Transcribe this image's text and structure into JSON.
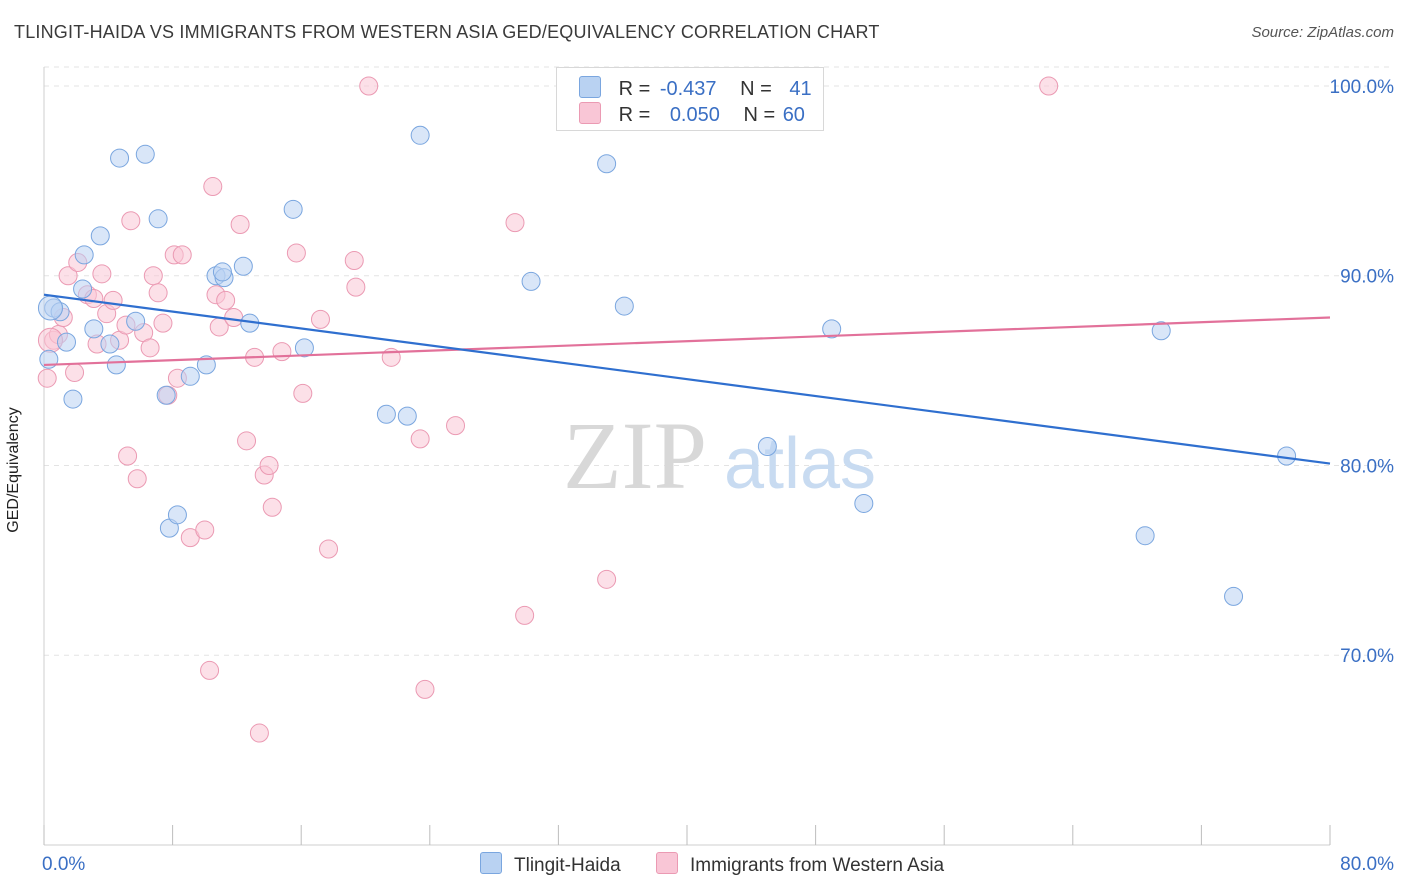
{
  "header": {
    "title": "TLINGIT-HAIDA VS IMMIGRANTS FROM WESTERN ASIA GED/EQUIVALENCY CORRELATION CHART",
    "source": "Source: ZipAtlas.com"
  },
  "watermark": {
    "zip": "ZIP",
    "atlas": "atlas"
  },
  "legend_top": {
    "rows": [
      {
        "r_label": "R =",
        "r_value": "-0.437",
        "n_label": "N =",
        "n_value": "41"
      },
      {
        "r_label": "R =",
        "r_value": "0.050",
        "n_label": "N =",
        "n_value": "60"
      }
    ]
  },
  "colors": {
    "blue_fill": "#b9d2f2",
    "blue_stroke": "#7aa6df",
    "blue_line": "#2f6fcf",
    "pink_fill": "#f9c6d6",
    "pink_stroke": "#eb9ab3",
    "pink_line": "#e2719a",
    "tick_label": "#3a6fc4",
    "grid": "#e3e3e3"
  },
  "chart_data": {
    "type": "scatter",
    "title": "TLINGIT-HAIDA VS IMMIGRANTS FROM WESTERN ASIA GED/EQUIVALENCY CORRELATION CHART",
    "ylabel": "GED/Equivalency",
    "xlabel": "",
    "xlim": [
      0,
      80
    ],
    "ylim": [
      60,
      101
    ],
    "x_tick_labels": [
      "0.0%",
      "80.0%"
    ],
    "y_ticks": [
      70,
      80,
      90,
      100
    ],
    "y_tick_labels": [
      "70.0%",
      "80.0%",
      "90.0%",
      "100.0%"
    ],
    "grid": true,
    "legend": "bottom-center",
    "series": [
      {
        "name": "Tlingit-Haida",
        "color": "#7aa6df",
        "trend": {
          "x": [
            0,
            80
          ],
          "y": [
            89.0,
            80.1
          ]
        },
        "points": [
          [
            0.3,
            85.6
          ],
          [
            0.6,
            88.3
          ],
          [
            1.0,
            88.1
          ],
          [
            1.4,
            86.5
          ],
          [
            1.8,
            83.5
          ],
          [
            2.4,
            89.3
          ],
          [
            2.5,
            91.1
          ],
          [
            3.1,
            87.2
          ],
          [
            3.5,
            92.1
          ],
          [
            4.1,
            86.4
          ],
          [
            4.5,
            85.3
          ],
          [
            4.7,
            96.2
          ],
          [
            5.7,
            87.6
          ],
          [
            6.3,
            96.4
          ],
          [
            7.1,
            93.0
          ],
          [
            7.6,
            83.7
          ],
          [
            7.8,
            76.7
          ],
          [
            8.3,
            77.4
          ],
          [
            9.1,
            84.7
          ],
          [
            10.1,
            85.3
          ],
          [
            10.7,
            90.0
          ],
          [
            11.2,
            89.9
          ],
          [
            11.1,
            90.2
          ],
          [
            12.4,
            90.5
          ],
          [
            12.8,
            87.5
          ],
          [
            15.5,
            93.5
          ],
          [
            16.2,
            86.2
          ],
          [
            21.3,
            82.7
          ],
          [
            22.6,
            82.6
          ],
          [
            23.4,
            97.4
          ],
          [
            30.3,
            89.7
          ],
          [
            35.0,
            95.9
          ],
          [
            36.1,
            88.4
          ],
          [
            45.0,
            81.0
          ],
          [
            49.0,
            87.2
          ],
          [
            51.0,
            78.0
          ],
          [
            69.5,
            87.1
          ],
          [
            68.5,
            76.3
          ],
          [
            74.0,
            73.1
          ],
          [
            77.3,
            80.5
          ],
          [
            0.4,
            88.3
          ]
        ]
      },
      {
        "name": "Immigrants from Western Asia",
        "color": "#eb9ab3",
        "trend": {
          "x": [
            0,
            80
          ],
          "y": [
            85.3,
            87.8
          ]
        },
        "points": [
          [
            0.2,
            84.6
          ],
          [
            0.6,
            86.6
          ],
          [
            0.9,
            86.9
          ],
          [
            1.2,
            87.8
          ],
          [
            1.5,
            90.0
          ],
          [
            1.9,
            84.9
          ],
          [
            2.1,
            90.7
          ],
          [
            2.7,
            89.0
          ],
          [
            3.1,
            88.8
          ],
          [
            3.3,
            86.4
          ],
          [
            3.6,
            90.1
          ],
          [
            3.9,
            88.0
          ],
          [
            4.3,
            88.7
          ],
          [
            4.7,
            86.6
          ],
          [
            5.1,
            87.4
          ],
          [
            5.2,
            80.5
          ],
          [
            5.4,
            92.9
          ],
          [
            5.8,
            79.3
          ],
          [
            6.2,
            87.0
          ],
          [
            6.6,
            86.2
          ],
          [
            6.8,
            90.0
          ],
          [
            7.1,
            89.1
          ],
          [
            7.4,
            87.5
          ],
          [
            7.7,
            83.7
          ],
          [
            8.1,
            91.1
          ],
          [
            8.3,
            84.6
          ],
          [
            8.6,
            91.1
          ],
          [
            9.1,
            76.2
          ],
          [
            10.0,
            76.6
          ],
          [
            10.3,
            69.2
          ],
          [
            10.5,
            94.7
          ],
          [
            10.7,
            89.0
          ],
          [
            10.9,
            87.3
          ],
          [
            11.3,
            88.7
          ],
          [
            11.8,
            87.8
          ],
          [
            12.2,
            92.7
          ],
          [
            12.6,
            81.3
          ],
          [
            13.1,
            85.7
          ],
          [
            13.4,
            65.9
          ],
          [
            13.7,
            79.5
          ],
          [
            14.0,
            80.0
          ],
          [
            14.2,
            77.8
          ],
          [
            14.8,
            86.0
          ],
          [
            15.7,
            91.2
          ],
          [
            16.1,
            83.8
          ],
          [
            17.2,
            87.7
          ],
          [
            17.7,
            75.6
          ],
          [
            19.3,
            90.8
          ],
          [
            19.4,
            89.4
          ],
          [
            20.2,
            100.0
          ],
          [
            21.6,
            85.7
          ],
          [
            23.4,
            81.4
          ],
          [
            23.7,
            68.2
          ],
          [
            25.6,
            82.1
          ],
          [
            29.3,
            92.8
          ],
          [
            29.9,
            72.1
          ],
          [
            35.0,
            74.0
          ],
          [
            42.8,
            100.0
          ],
          [
            62.5,
            100.0
          ],
          [
            0.4,
            86.6
          ]
        ]
      }
    ]
  },
  "legend_bottom": {
    "items": [
      {
        "label": "Tlingit-Haida"
      },
      {
        "label": "Immigrants from Western Asia"
      }
    ]
  }
}
